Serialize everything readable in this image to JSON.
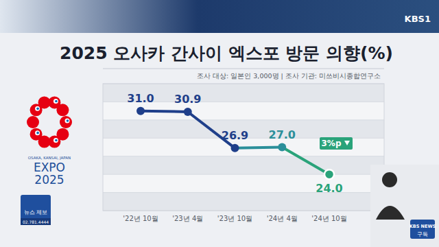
{
  "chart_data": {
    "type": "line",
    "title": "2025 오사카 간사이 엑스포 방문 의향(%)",
    "subtitle": "조사 대상: 일본인 3,000명  |  조사 기관: 미쓰비시종합연구소",
    "categories": [
      "'22년 10월",
      "'23년 4월",
      "'23년 10월",
      "'24년 4월",
      "'24년 10월"
    ],
    "values": [
      31.0,
      30.9,
      26.9,
      27.0,
      24.0
    ],
    "value_labels": [
      "31.0",
      "30.9",
      "26.9",
      "27.0",
      "24.0"
    ],
    "colors": [
      "#1f3f8a",
      "#1f3f8a",
      "#1f3f8a",
      "#2b8f9a",
      "#2aa37a"
    ],
    "data_labels": true,
    "ylim": [
      20,
      34
    ],
    "yticks": [
      20,
      22,
      24,
      26,
      28,
      30,
      32,
      34
    ],
    "grid": true,
    "tick_labels": "x",
    "marker": "circle",
    "annotations": [
      "3%p",
      "OSAKA, KANSAI, JAPAN",
      "EXPO",
      "2025",
      "KBS1",
      "뉴스 제보",
      "02.781.4444",
      "KBS NEWS",
      "구독"
    ]
  }
}
